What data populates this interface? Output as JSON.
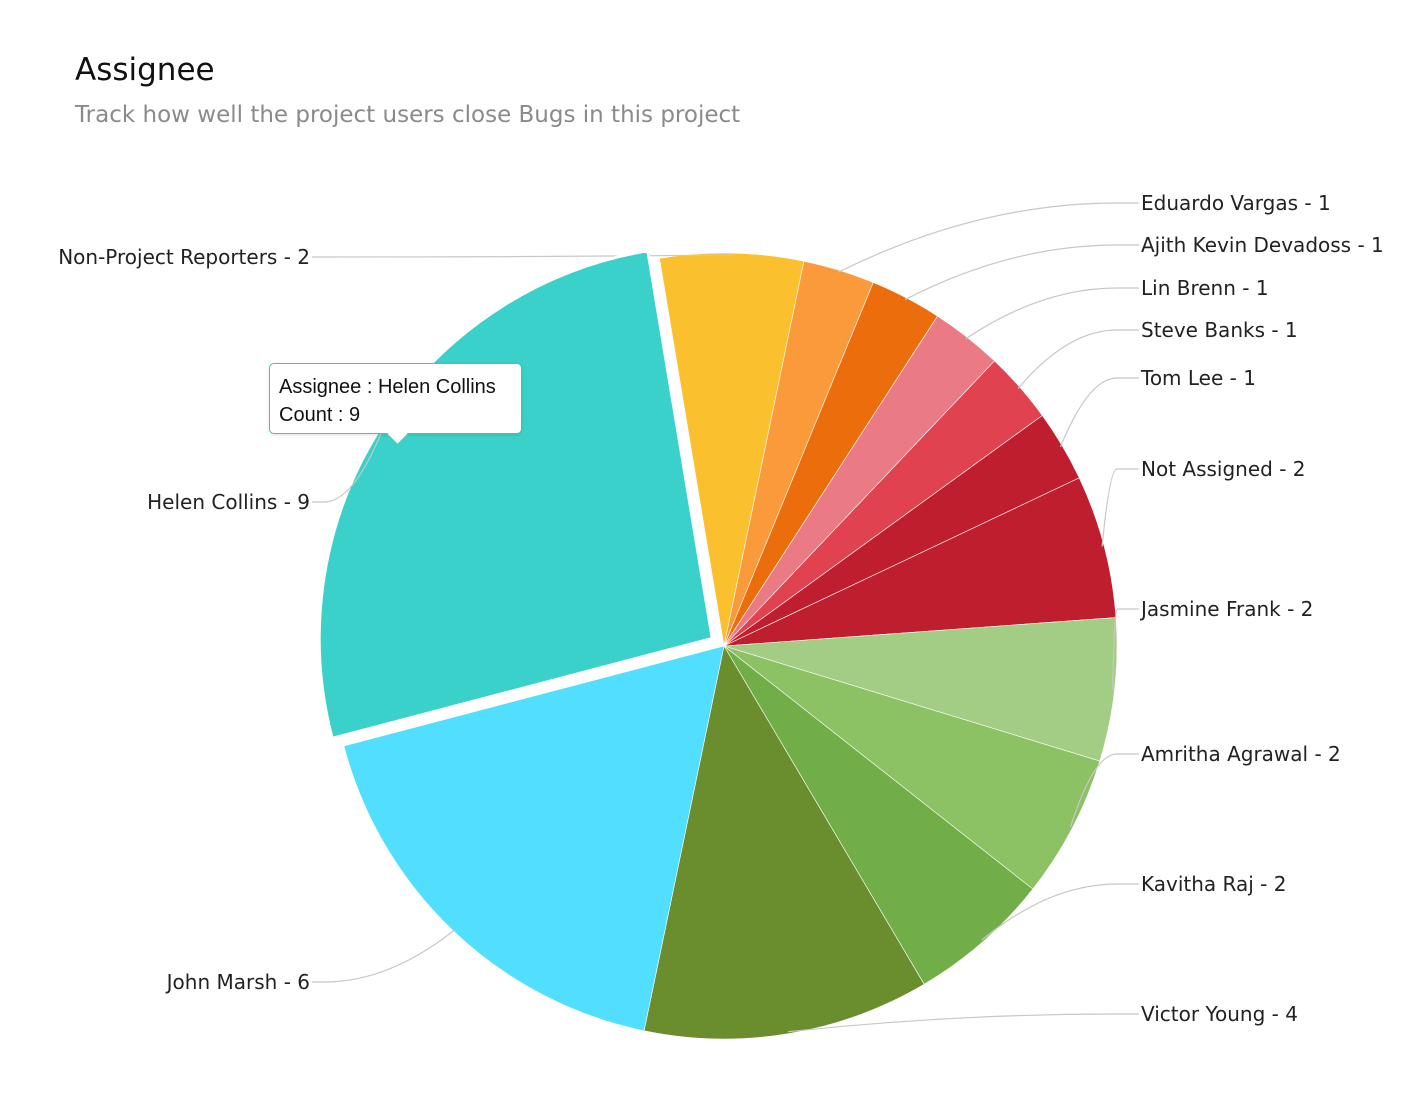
{
  "header": {
    "title": "Assignee",
    "subtitle": "Track how well the project users close Bugs in this project"
  },
  "tooltip": {
    "line1": "Assignee : Helen Collins",
    "line2": "Count : 9"
  },
  "chart_data": {
    "type": "pie",
    "title": "Assignee",
    "subtitle": "Track how well the project users close Bugs in this project",
    "label_format": "{name} - {value}",
    "highlighted": "Helen Collins",
    "slices": [
      {
        "name": "Non-Project Reporters",
        "value": 2,
        "color": "#fbc02d",
        "side": "left"
      },
      {
        "name": "Eduardo Vargas",
        "value": 1,
        "color": "#fb9a3a",
        "side": "right"
      },
      {
        "name": "Ajith Kevin Devadoss",
        "value": 1,
        "color": "#eb6d0c",
        "side": "right"
      },
      {
        "name": "Lin Brenn",
        "value": 1,
        "color": "#ea7b84",
        "side": "right"
      },
      {
        "name": "Steve Banks",
        "value": 1,
        "color": "#e0424f",
        "side": "right"
      },
      {
        "name": "Tom Lee",
        "value": 1,
        "color": "#be1e2e",
        "side": "right"
      },
      {
        "name": "Not Assigned",
        "value": 2,
        "color": "#be1e2e",
        "side": "right"
      },
      {
        "name": "Jasmine Frank",
        "value": 2,
        "color": "#a3cd85",
        "side": "right"
      },
      {
        "name": "Amritha Agrawal",
        "value": 2,
        "color": "#8cc264",
        "side": "right"
      },
      {
        "name": "Kavitha Raj",
        "value": 2,
        "color": "#72ae47",
        "side": "right"
      },
      {
        "name": "Victor Young",
        "value": 4,
        "color": "#6a8d2e",
        "side": "right"
      },
      {
        "name": "John Marsh",
        "value": 6,
        "color": "#52defe",
        "side": "left"
      },
      {
        "name": "Helen Collins",
        "value": 9,
        "color": "#3ad1ca",
        "side": "left"
      }
    ],
    "legend": "none"
  }
}
